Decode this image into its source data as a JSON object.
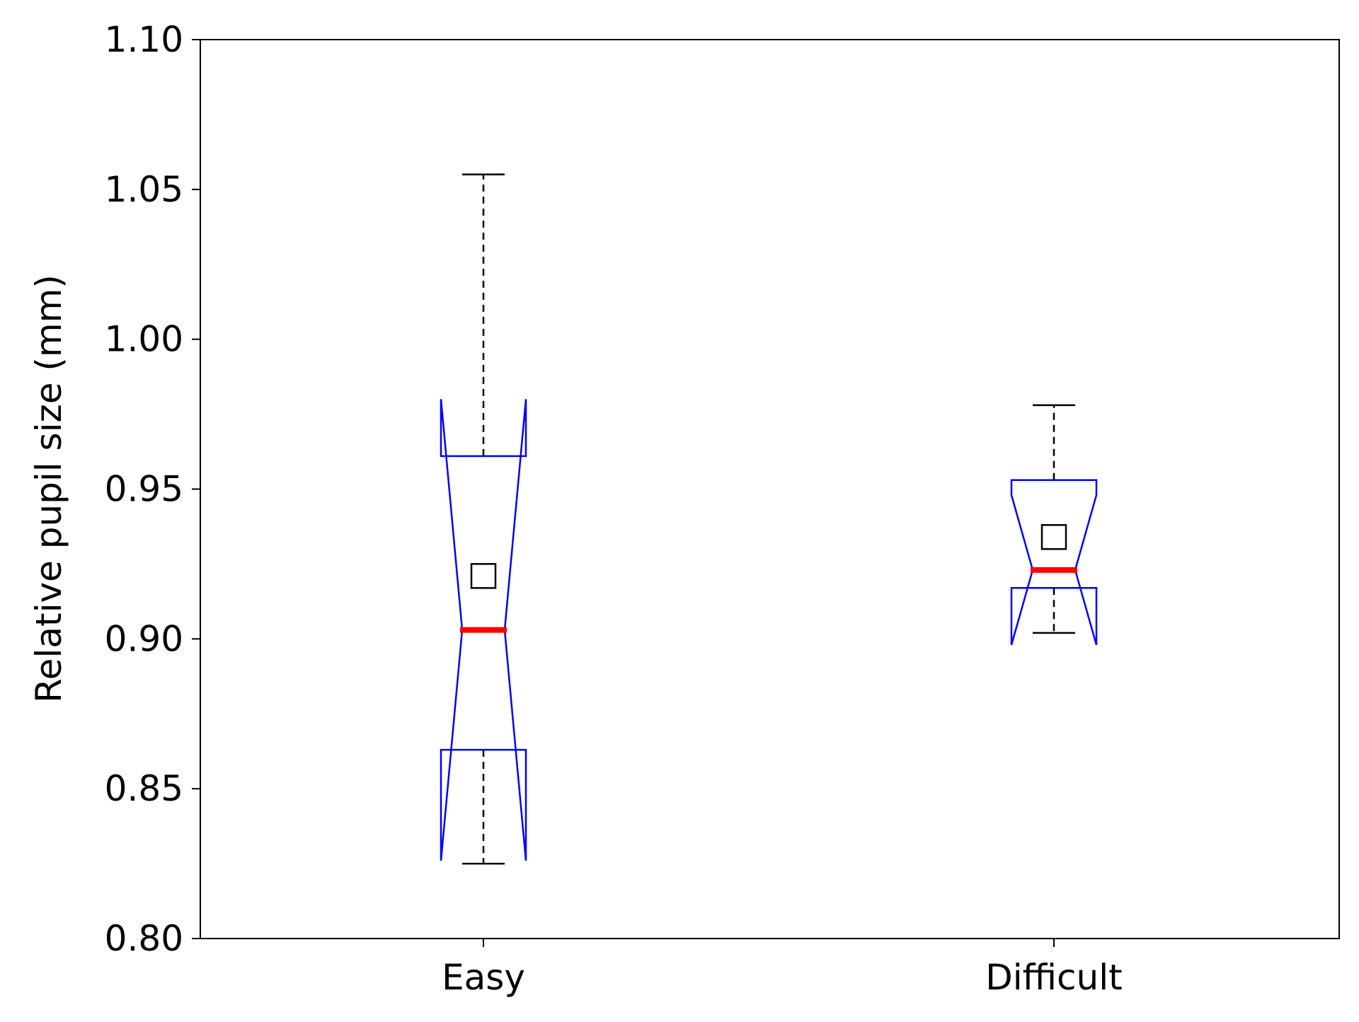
{
  "chart_data": {
    "type": "boxplot",
    "title": "",
    "xlabel": "",
    "ylabel": "Relative pupil size (mm)",
    "ylim": [
      0.8,
      1.1
    ],
    "yticks": [
      "0.80",
      "0.85",
      "0.90",
      "0.95",
      "1.00",
      "1.05",
      "1.10"
    ],
    "categories": [
      "Easy",
      "Difficult"
    ],
    "grid": false,
    "notched": true,
    "boxes": [
      {
        "category": "Easy",
        "whisker_low": 0.825,
        "q1": 0.863,
        "notch_low": 0.826,
        "median": 0.903,
        "notch_high": 0.98,
        "q3": 0.961,
        "whisker_high": 1.055,
        "mean": 0.921
      },
      {
        "category": "Difficult",
        "whisker_low": 0.902,
        "q1": 0.917,
        "notch_low": 0.898,
        "median": 0.923,
        "notch_high": 0.948,
        "q3": 0.953,
        "whisker_high": 0.978,
        "mean": 0.934
      }
    ],
    "colors": {
      "box": "#0000ff",
      "median": "#ff0000",
      "whisker": "#000000",
      "mean_marker": "#000000",
      "axes": "#000000"
    }
  }
}
